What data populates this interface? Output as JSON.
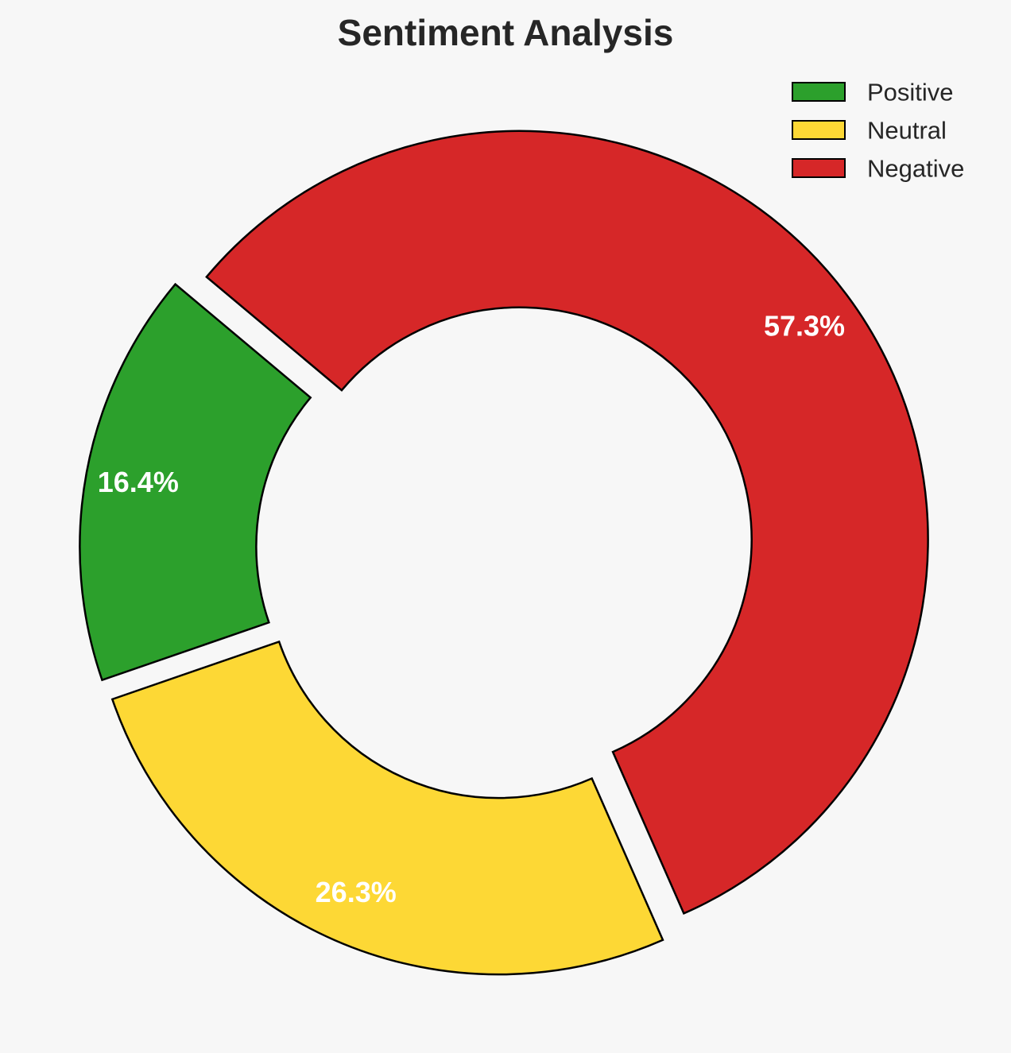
{
  "chart_data": {
    "type": "pie",
    "style": "donut",
    "title": "Sentiment Analysis",
    "categories": [
      "Positive",
      "Neutral",
      "Negative"
    ],
    "values": [
      16.4,
      26.3,
      57.3
    ],
    "value_labels": [
      "16.4%",
      "26.3%",
      "57.3%"
    ],
    "colors": [
      "#2ca02c",
      "#fdd835",
      "#d62728"
    ],
    "edge_color": "#000000",
    "label_color": "#ffffff",
    "legend": {
      "placement": "top-right",
      "entries": [
        "Positive",
        "Neutral",
        "Negative"
      ]
    },
    "exploded": true
  }
}
